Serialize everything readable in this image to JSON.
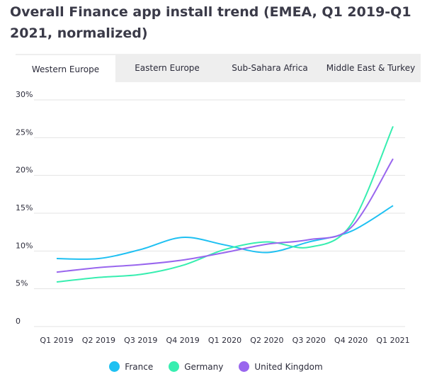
{
  "title": "Overall Finance app install trend (EMEA, Q1 2019-Q1 2021, normalized)",
  "tabs": [
    {
      "label": "Western Europe",
      "active": true
    },
    {
      "label": "Eastern Europe",
      "active": false
    },
    {
      "label": "Sub-Sahara Africa",
      "active": false
    },
    {
      "label": "Middle East & Turkey",
      "active": false
    }
  ],
  "chart_data": {
    "type": "line",
    "title": "",
    "xlabel": "",
    "ylabel": "",
    "categories": [
      "Q1 2019",
      "Q2 2019",
      "Q3 2019",
      "Q4 2019",
      "Q1 2020",
      "Q2 2020",
      "Q3 2020",
      "Q4 2020",
      "Q1 2021"
    ],
    "y_ticks": [
      "0",
      "5%",
      "10%",
      "15%",
      "20%",
      "25%",
      "30%"
    ],
    "ylim": [
      0,
      30
    ],
    "grid": true,
    "legend_position": "bottom",
    "series": [
      {
        "name": "France",
        "color": "#1ec0f2",
        "values": [
          9.0,
          9.0,
          10.2,
          11.8,
          10.8,
          9.8,
          11.2,
          12.6,
          16.0
        ]
      },
      {
        "name": "Germany",
        "color": "#37eeb0",
        "values": [
          5.9,
          6.5,
          6.9,
          8.1,
          10.2,
          11.2,
          10.5,
          13.5,
          26.5
        ]
      },
      {
        "name": "United Kingdom",
        "color": "#9966ee",
        "values": [
          7.2,
          7.8,
          8.2,
          8.8,
          9.8,
          10.9,
          11.5,
          13.1,
          22.2
        ]
      }
    ]
  }
}
